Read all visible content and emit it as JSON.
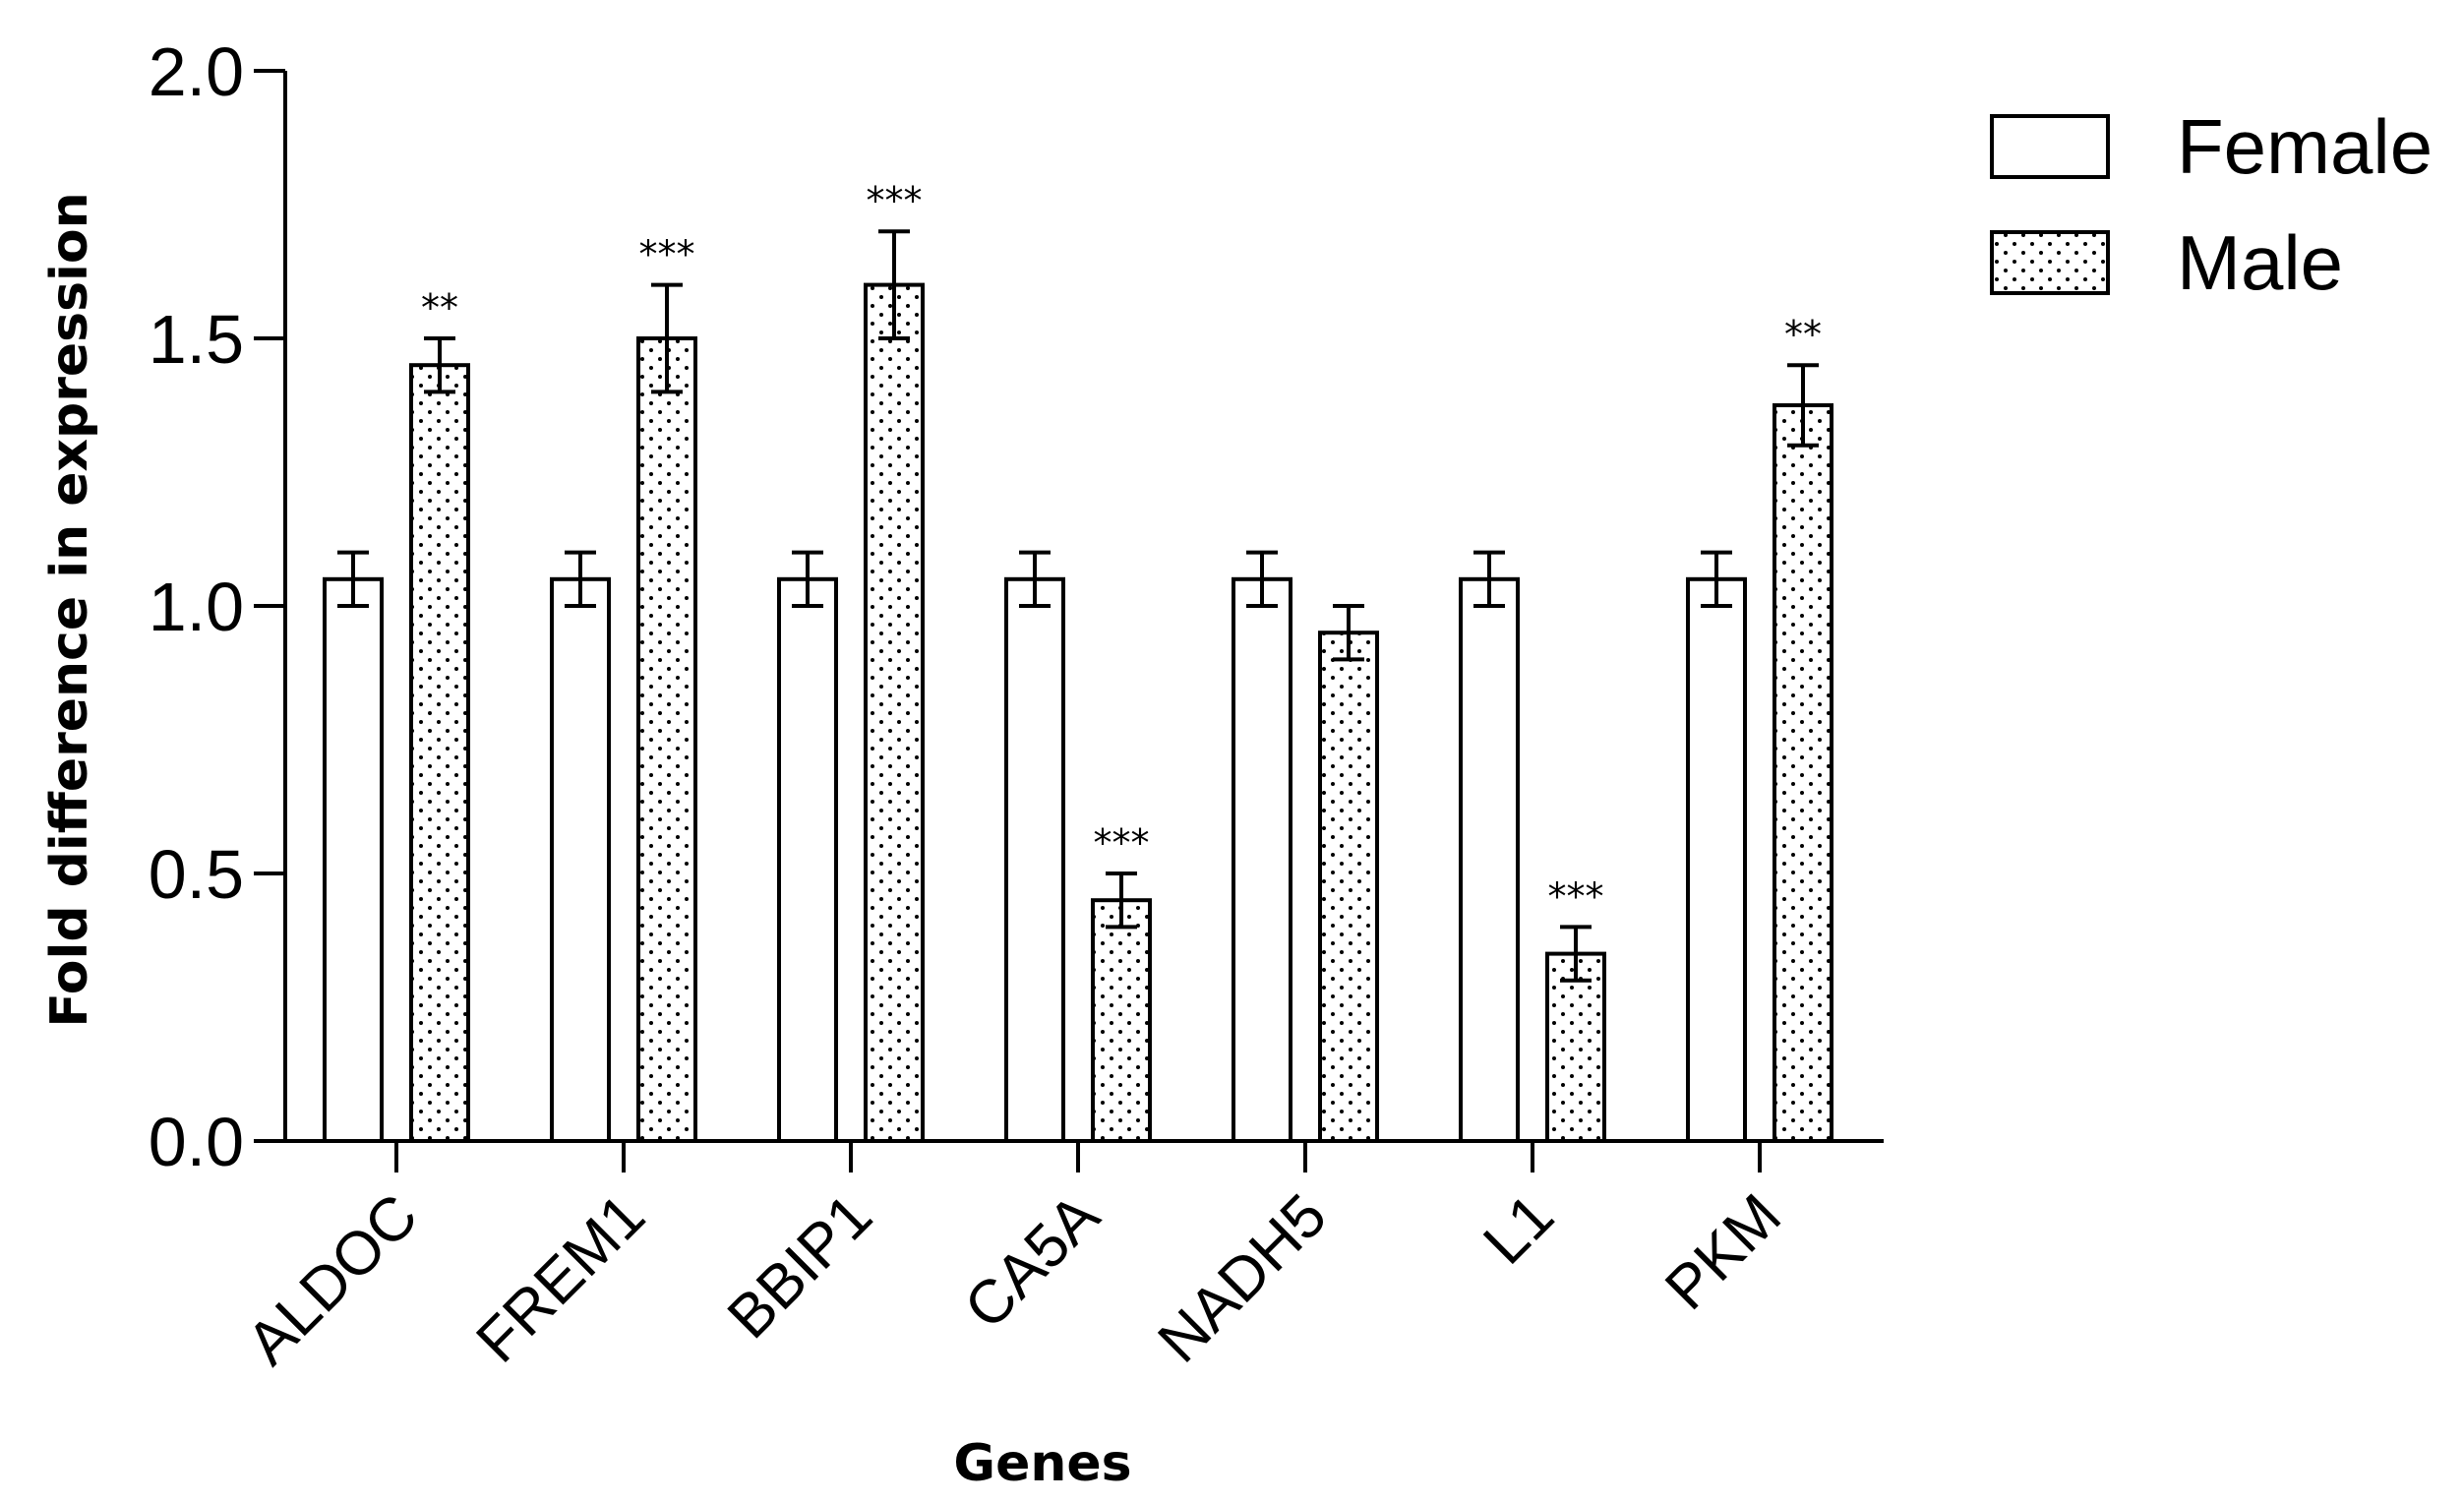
{
  "chart_data": {
    "type": "bar",
    "xlabel": "Genes",
    "ylabel": "Fold difference in expression",
    "ylim": [
      0,
      2.0
    ],
    "yticks": [
      "0.0",
      "0.5",
      "1.0",
      "1.5",
      "2.0"
    ],
    "categories": [
      "ALDOC",
      "FREM1",
      "BBIP1",
      "CA5A",
      "NADH5",
      "L1",
      "PKM"
    ],
    "series": [
      {
        "name": "Female",
        "fill": "white",
        "values": [
          1.05,
          1.05,
          1.05,
          1.05,
          1.05,
          1.05,
          1.05
        ],
        "errors": [
          0.05,
          0.05,
          0.05,
          0.05,
          0.05,
          0.05,
          0.05
        ],
        "significance": [
          "",
          "",
          "",
          "",
          "",
          "",
          ""
        ]
      },
      {
        "name": "Male",
        "fill": "dotted",
        "values": [
          1.45,
          1.5,
          1.6,
          0.45,
          0.95,
          0.35,
          1.375
        ],
        "errors": [
          0.05,
          0.1,
          0.1,
          0.05,
          0.05,
          0.05,
          0.075
        ],
        "significance": [
          "**",
          "***",
          "***",
          "***",
          "",
          "***",
          "**"
        ]
      }
    ],
    "legend": {
      "position": "top-right"
    },
    "grid": false
  }
}
